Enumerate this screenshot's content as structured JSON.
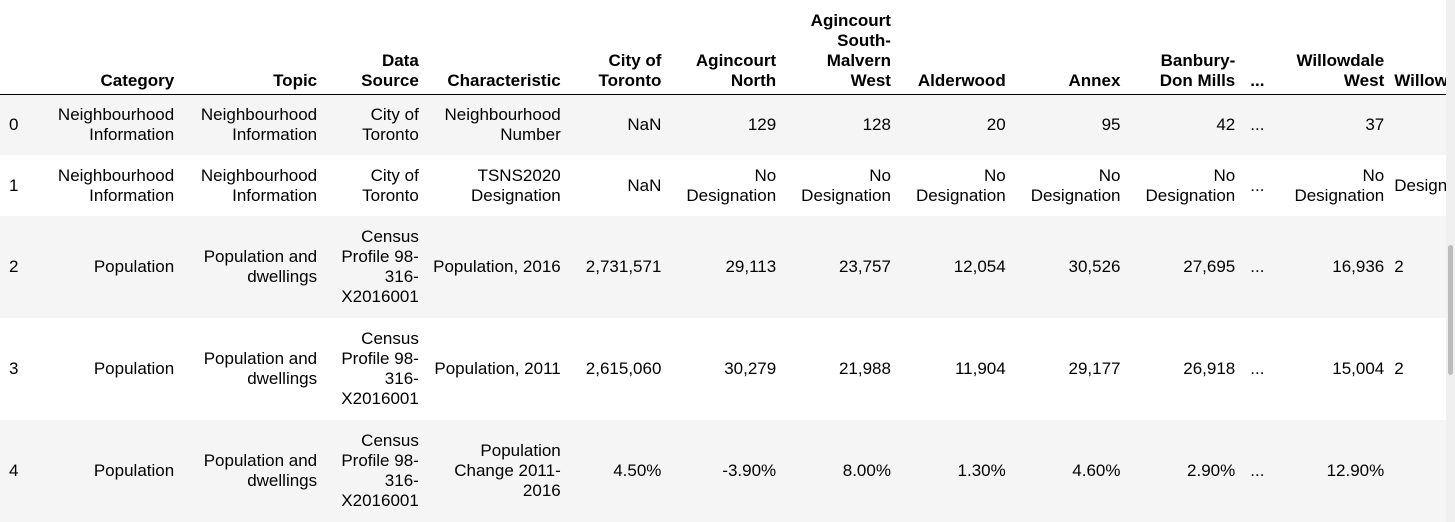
{
  "table": {
    "columns": [
      "",
      "Category",
      "Topic",
      "Data Source",
      "Characteristic",
      "City of Toronto",
      "Agincourt North",
      "Agincourt South-Malvern West",
      "Alderwood",
      "Annex",
      "Banbury-Don Mills",
      "...",
      "Willowdale West",
      "Willowdale-Martingrove Richview"
    ],
    "rows": [
      [
        "0",
        "Neighbourhood Information",
        "Neighbourhood Information",
        "City of Toronto",
        "Neighbourhood Number",
        "NaN",
        "129",
        "128",
        "20",
        "95",
        "42",
        "...",
        "37",
        ""
      ],
      [
        "1",
        "Neighbourhood Information",
        "Neighbourhood Information",
        "City of Toronto",
        "TSNS2020 Designation",
        "NaN",
        "No Designation",
        "No Designation",
        "No Designation",
        "No Designation",
        "No Designation",
        "...",
        "No Designation",
        "Designation"
      ],
      [
        "2",
        "Population",
        "Population and dwellings",
        "Census Profile 98-316-X2016001",
        "Population, 2016",
        "2,731,571",
        "29,113",
        "23,757",
        "12,054",
        "30,526",
        "27,695",
        "...",
        "16,936",
        "2"
      ],
      [
        "3",
        "Population",
        "Population and dwellings",
        "Census Profile 98-316-X2016001",
        "Population, 2011",
        "2,615,060",
        "30,279",
        "21,988",
        "11,904",
        "29,177",
        "26,918",
        "...",
        "15,004",
        "2"
      ],
      [
        "4",
        "Population",
        "Population and dwellings",
        "Census Profile 98-316-X2016001",
        "Population Change 2011-2016",
        "4.50%",
        "-3.90%",
        "8.00%",
        "1.30%",
        "4.60%",
        "2.90%",
        "...",
        "12.90%",
        ""
      ]
    ]
  }
}
